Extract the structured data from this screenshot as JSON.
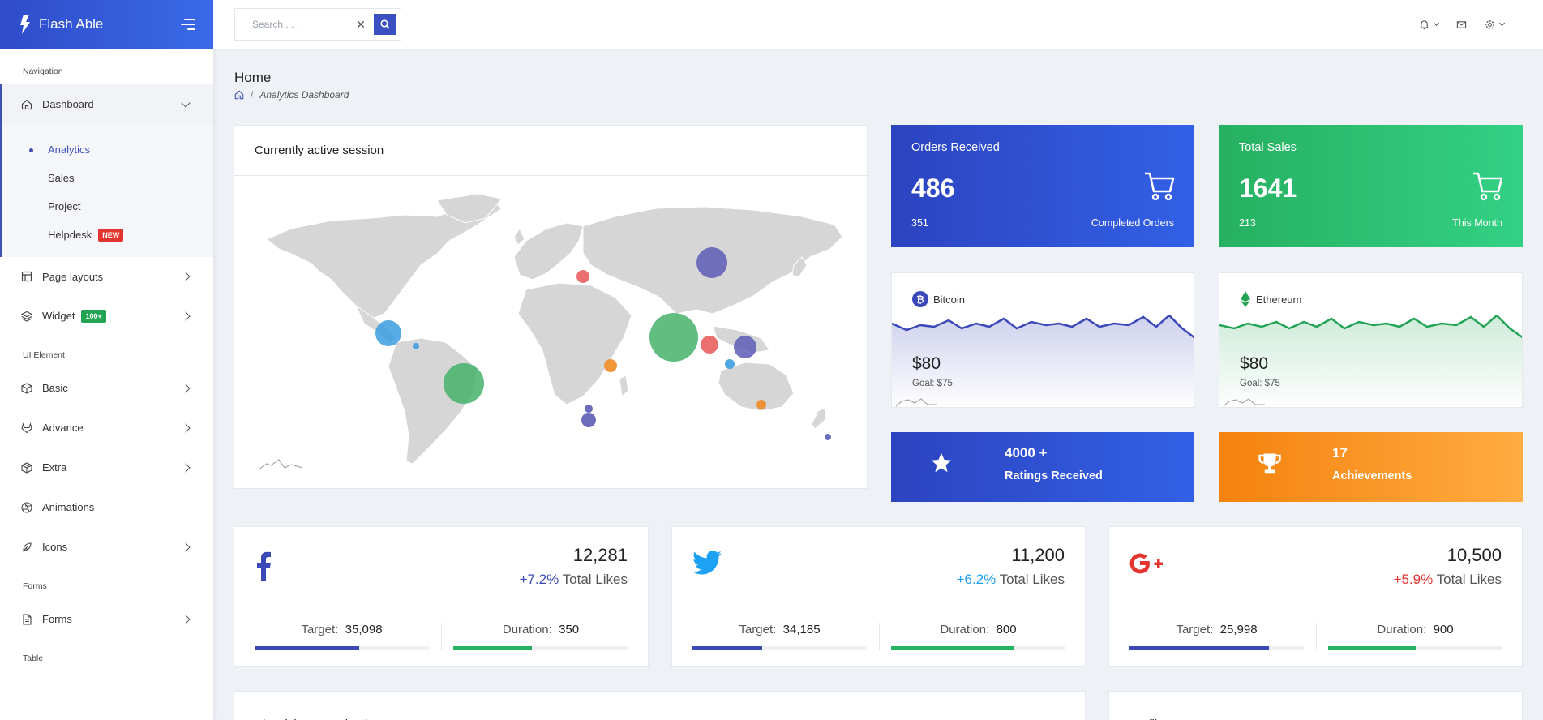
{
  "brand": {
    "name": "Flash Able"
  },
  "search": {
    "placeholder": "Search . . ."
  },
  "sidebar": {
    "captions": {
      "navigation": "Navigation",
      "ui_element": "UI Element",
      "forms": "Forms",
      "table": "Table"
    },
    "dashboard": "Dashboard",
    "dashboard_sub": [
      "Analytics",
      "Sales",
      "Project",
      "Helpdesk"
    ],
    "helpdesk_badge": "NEW",
    "page_layouts": "Page layouts",
    "widget": "Widget",
    "widget_badge": "100+",
    "basic": "Basic",
    "advance": "Advance",
    "extra": "Extra",
    "animations": "Animations",
    "icons": "Icons",
    "forms_item": "Forms"
  },
  "page": {
    "title": "Home",
    "breadcrumb": "Analytics Dashboard"
  },
  "session_card": {
    "title": "Currently active session"
  },
  "orders": {
    "title": "Orders Received",
    "value": "486",
    "left": "351",
    "right": "Completed Orders",
    "color": "#2c4ed6"
  },
  "sales": {
    "title": "Total Sales",
    "value": "1641",
    "left": "213",
    "right": "This Month",
    "color": "#2bbf6e"
  },
  "bitcoin": {
    "name": "Bitcoin",
    "value": "$80",
    "goal": "Goal: $75",
    "color": "#3b48b8"
  },
  "ethereum": {
    "name": "Ethereum",
    "value": "$80",
    "goal": "Goal: $75",
    "color": "#23a455"
  },
  "ratings": {
    "value": "4000 +",
    "label": "Ratings Received"
  },
  "achievements": {
    "value": "17",
    "label": "Achievements"
  },
  "social": {
    "target_label": "Target:",
    "duration_label": "Duration:",
    "likes_label": "Total Likes",
    "facebook": {
      "count": "12,281",
      "change": "+7.2%",
      "target": "35,098",
      "duration": "350",
      "target_pct": 0.6,
      "duration_pct": 0.45,
      "color": "#3b48b8"
    },
    "twitter": {
      "count": "11,200",
      "change": "+6.2%",
      "target": "34,185",
      "duration": "800",
      "target_pct": 0.4,
      "duration_pct": 0.7,
      "color": "#1da1f2"
    },
    "google": {
      "count": "10,500",
      "change": "+5.9%",
      "target": "25,998",
      "duration": "900",
      "target_pct": 0.8,
      "duration_pct": 0.5,
      "color": "#e3342f"
    }
  },
  "bottom": {
    "visitors_title": "Site visitors session log",
    "profile_title": "Profile"
  }
}
